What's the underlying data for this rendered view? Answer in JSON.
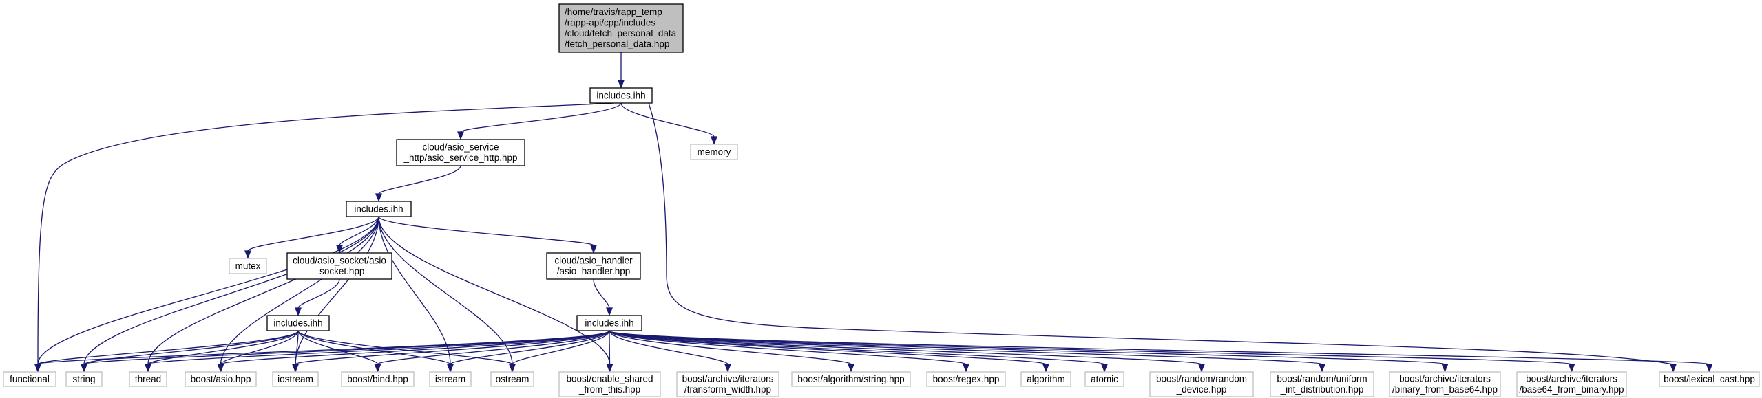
{
  "diagram": {
    "nodes": [
      {
        "id": "root",
        "label": [
          "/home/travis/rapp_temp",
          "/rapp-api/cpp/includes",
          "/cloud/fetch_personal_data",
          "/fetch_personal_data.hpp"
        ],
        "style": "root"
      },
      {
        "id": "inc0",
        "label": [
          "includes.ihh"
        ],
        "style": "file"
      },
      {
        "id": "memory",
        "label": [
          "memory"
        ],
        "style": "ext"
      },
      {
        "id": "asio_service",
        "label": [
          "cloud/asio_service",
          "_http/asio_service_http.hpp"
        ],
        "style": "file"
      },
      {
        "id": "inc1",
        "label": [
          "includes.ihh"
        ],
        "style": "file"
      },
      {
        "id": "mutex",
        "label": [
          "mutex"
        ],
        "style": "ext"
      },
      {
        "id": "asio_socket",
        "label": [
          "cloud/asio_socket/asio",
          "_socket.hpp"
        ],
        "style": "file"
      },
      {
        "id": "asio_handler",
        "label": [
          "cloud/asio_handler",
          "/asio_handler.hpp"
        ],
        "style": "file"
      },
      {
        "id": "inc2",
        "label": [
          "includes.ihh"
        ],
        "style": "file"
      },
      {
        "id": "inc3",
        "label": [
          "includes.ihh"
        ],
        "style": "file"
      },
      {
        "id": "functional",
        "label": [
          "functional"
        ],
        "style": "ext"
      },
      {
        "id": "string",
        "label": [
          "string"
        ],
        "style": "ext"
      },
      {
        "id": "thread",
        "label": [
          "thread"
        ],
        "style": "ext"
      },
      {
        "id": "asio_hpp",
        "label": [
          "boost/asio.hpp"
        ],
        "style": "ext"
      },
      {
        "id": "iostream",
        "label": [
          "iostream"
        ],
        "style": "ext"
      },
      {
        "id": "bind_hpp",
        "label": [
          "boost/bind.hpp"
        ],
        "style": "ext"
      },
      {
        "id": "istream",
        "label": [
          "istream"
        ],
        "style": "ext"
      },
      {
        "id": "ostream",
        "label": [
          "ostream"
        ],
        "style": "ext"
      },
      {
        "id": "enable_shared",
        "label": [
          "boost/enable_shared",
          "_from_this.hpp"
        ],
        "style": "ext"
      },
      {
        "id": "transform_width",
        "label": [
          "boost/archive/iterators",
          "/transform_width.hpp"
        ],
        "style": "ext"
      },
      {
        "id": "algo_string",
        "label": [
          "boost/algorithm/string.hpp"
        ],
        "style": "ext"
      },
      {
        "id": "regex",
        "label": [
          "boost/regex.hpp"
        ],
        "style": "ext"
      },
      {
        "id": "algorithm",
        "label": [
          "algorithm"
        ],
        "style": "ext"
      },
      {
        "id": "atomic",
        "label": [
          "atomic"
        ],
        "style": "ext"
      },
      {
        "id": "random_device",
        "label": [
          "boost/random/random",
          "_device.hpp"
        ],
        "style": "ext"
      },
      {
        "id": "uniform_int",
        "label": [
          "boost/random/uniform",
          "_int_distribution.hpp"
        ],
        "style": "ext"
      },
      {
        "id": "binary_from_base64",
        "label": [
          "boost/archive/iterators",
          "/binary_from_base64.hpp"
        ],
        "style": "ext"
      },
      {
        "id": "base64_from_binary",
        "label": [
          "boost/archive/iterators",
          "/base64_from_binary.hpp"
        ],
        "style": "ext"
      },
      {
        "id": "lexical_cast",
        "label": [
          "boost/lexical_cast.hpp"
        ],
        "style": "ext"
      }
    ],
    "edges": [
      [
        "root",
        "inc0"
      ],
      [
        "inc0",
        "functional"
      ],
      [
        "inc0",
        "asio_service"
      ],
      [
        "inc0",
        "memory"
      ],
      [
        "inc0",
        "lexical_cast"
      ],
      [
        "asio_service",
        "inc1"
      ],
      [
        "inc1",
        "functional"
      ],
      [
        "inc1",
        "string"
      ],
      [
        "inc1",
        "thread"
      ],
      [
        "inc1",
        "asio_hpp"
      ],
      [
        "inc1",
        "mutex"
      ],
      [
        "inc1",
        "asio_socket"
      ],
      [
        "inc1",
        "iostream"
      ],
      [
        "inc1",
        "istream"
      ],
      [
        "inc1",
        "ostream"
      ],
      [
        "inc1",
        "enable_shared"
      ],
      [
        "inc1",
        "asio_handler"
      ],
      [
        "asio_socket",
        "inc2"
      ],
      [
        "inc2",
        "functional"
      ],
      [
        "inc2",
        "string"
      ],
      [
        "inc2",
        "thread"
      ],
      [
        "inc2",
        "asio_hpp"
      ],
      [
        "inc2",
        "iostream"
      ],
      [
        "inc2",
        "bind_hpp"
      ],
      [
        "inc2",
        "istream"
      ],
      [
        "inc2",
        "ostream"
      ],
      [
        "asio_handler",
        "inc3"
      ],
      [
        "inc3",
        "functional"
      ],
      [
        "inc3",
        "string"
      ],
      [
        "inc3",
        "thread"
      ],
      [
        "inc3",
        "asio_hpp"
      ],
      [
        "inc3",
        "iostream"
      ],
      [
        "inc3",
        "bind_hpp"
      ],
      [
        "inc3",
        "istream"
      ],
      [
        "inc3",
        "ostream"
      ],
      [
        "inc3",
        "enable_shared"
      ],
      [
        "inc3",
        "transform_width"
      ],
      [
        "inc3",
        "algo_string"
      ],
      [
        "inc3",
        "regex"
      ],
      [
        "inc3",
        "algorithm"
      ],
      [
        "inc3",
        "atomic"
      ],
      [
        "inc3",
        "random_device"
      ],
      [
        "inc3",
        "uniform_int"
      ],
      [
        "inc3",
        "binary_from_base64"
      ],
      [
        "inc3",
        "base64_from_binary"
      ],
      [
        "inc3",
        "lexical_cast"
      ]
    ],
    "colors": {
      "edge": "#191970",
      "root_fill": "#bfbfbf",
      "root_border": "#000000",
      "file_border": "#000000",
      "ext_border": "#bfbfbf",
      "node_fill": "#ffffff"
    }
  }
}
